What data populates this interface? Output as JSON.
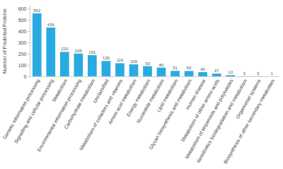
{
  "chart_data": {
    "type": "bar",
    "categories": [
      "Genetic information processing",
      "Signalling and cellular processing",
      "Metabolism",
      "Environmental information processing",
      "Carbohydrate metabolism",
      "Unclassified",
      "Metabolism of cofactors and vitamins",
      "Amino acid metabolism",
      "Energy metabolism",
      "Nucleotide metabolism",
      "Lipid metabolism",
      "Glycan biosynthesis and metabolism",
      "Human disease",
      "Metabolism of other amino acids",
      "Metabolism of terpenoids and polyketides",
      "Xenobiotics biodegradation and metabolism",
      "Organismal systems",
      "Biosynthesis of other secondary metabolites"
    ],
    "values": [
      562,
      436,
      220,
      205,
      191,
      139,
      119,
      109,
      93,
      80,
      51,
      50,
      40,
      27,
      13,
      3,
      3,
      1
    ],
    "color": "#29abe2",
    "ylabel": "Number of Predicted Proteins",
    "ylim": [
      0,
      630
    ],
    "yticks": [
      0,
      100,
      200,
      300,
      400,
      500,
      600
    ],
    "data_labels": true
  }
}
